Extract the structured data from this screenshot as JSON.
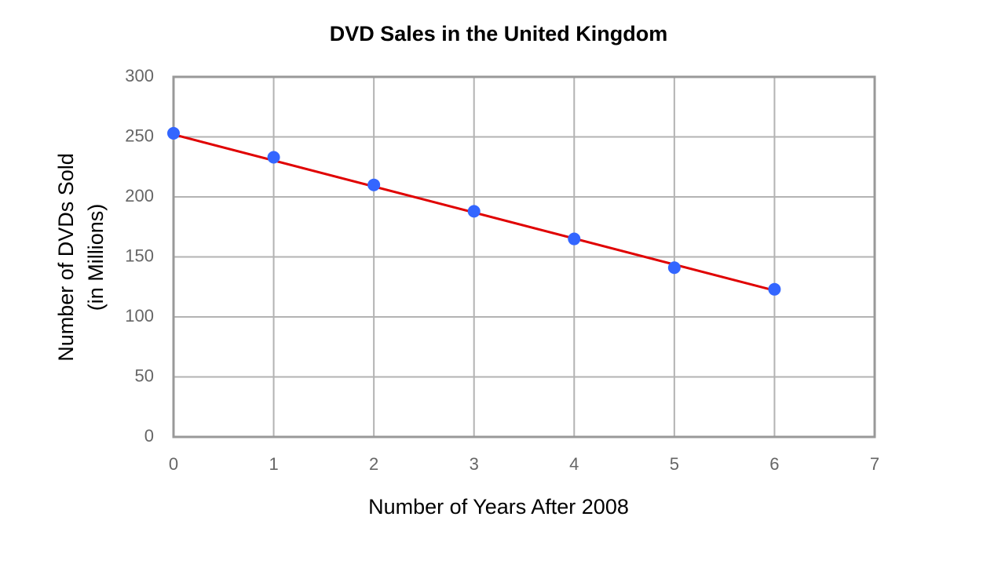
{
  "chart_data": {
    "type": "scatter",
    "title": "DVD Sales in the United Kingdom",
    "x_label": "Number of Years After 2008",
    "y_label": [
      "Number of DVDs Sold",
      "(in Millions)"
    ],
    "x": [
      0,
      1,
      2,
      3,
      4,
      5,
      6
    ],
    "values": [
      253,
      233,
      210,
      188,
      165,
      141,
      123
    ],
    "color": "#3366ff",
    "fit_line": {
      "x": [
        0,
        6
      ],
      "values": [
        252,
        122
      ],
      "color": "#e00000"
    },
    "xlim": [
      0,
      7
    ],
    "xticks": [
      0,
      1,
      2,
      3,
      4,
      5,
      6,
      7
    ],
    "ylim": [
      0,
      300
    ],
    "yticks": [
      0,
      50,
      100,
      150,
      200,
      250,
      300
    ],
    "grid": true
  }
}
